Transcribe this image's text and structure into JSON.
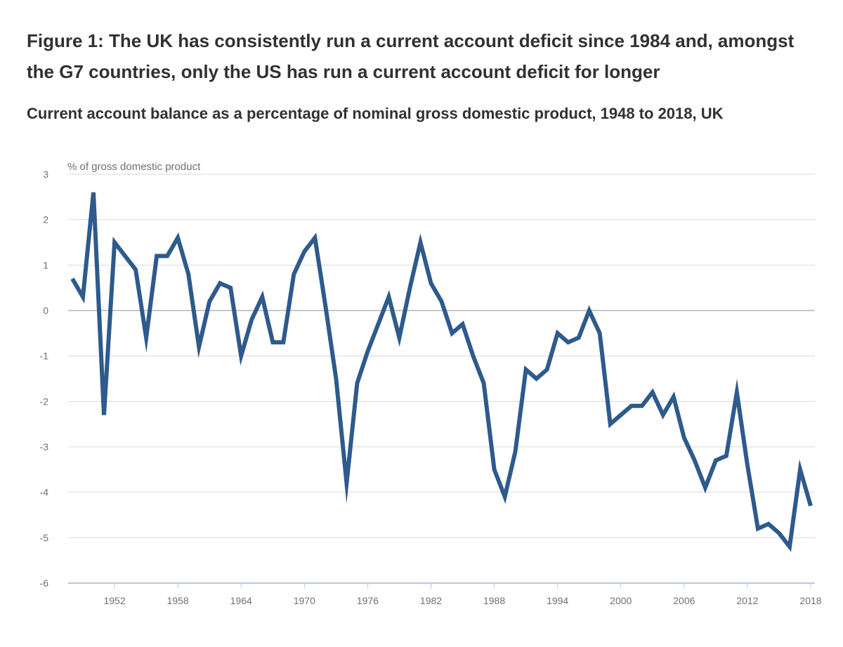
{
  "title": "Figure 1: The UK has consistently run a current account deficit since 1984 and, amongst the G7 countries, only the US has run a current account deficit for longer",
  "subtitle": "Current account balance as a percentage of nominal gross domestic product, 1948 to 2018, UK",
  "colors": {
    "line": "#2e5a8c",
    "grid": "#d9d9d9",
    "zero": "#c8c8c8",
    "axis": "#b9c9e0",
    "text": "#323132",
    "tick": "#707071"
  },
  "chart_data": {
    "type": "line",
    "ylabel": "% of gross domestic product",
    "xlabel": "",
    "ylim": [
      -6,
      3
    ],
    "xlim": [
      1948,
      2018
    ],
    "yticks": [
      3,
      2,
      1,
      0,
      -1,
      -2,
      -3,
      -4,
      -5,
      -6
    ],
    "xticks": [
      1952,
      1958,
      1964,
      1970,
      1976,
      1982,
      1988,
      1994,
      2000,
      2006,
      2012,
      2018
    ],
    "grid": true,
    "series": [
      {
        "name": "Current account balance (% of GDP)",
        "x": [
          1948,
          1949,
          1950,
          1951,
          1952,
          1953,
          1954,
          1955,
          1956,
          1957,
          1958,
          1959,
          1960,
          1961,
          1962,
          1963,
          1964,
          1965,
          1966,
          1967,
          1968,
          1969,
          1970,
          1971,
          1972,
          1973,
          1974,
          1975,
          1976,
          1977,
          1978,
          1979,
          1980,
          1981,
          1982,
          1983,
          1984,
          1985,
          1986,
          1987,
          1988,
          1989,
          1990,
          1991,
          1992,
          1993,
          1994,
          1995,
          1996,
          1997,
          1998,
          1999,
          2000,
          2001,
          2002,
          2003,
          2004,
          2005,
          2006,
          2007,
          2008,
          2009,
          2010,
          2011,
          2012,
          2013,
          2014,
          2015,
          2016,
          2017,
          2018
        ],
        "values": [
          0.7,
          0.3,
          2.6,
          -2.3,
          1.5,
          1.2,
          0.9,
          -0.6,
          1.2,
          1.2,
          1.6,
          0.8,
          -0.8,
          0.2,
          0.6,
          0.5,
          -1.0,
          -0.2,
          0.3,
          -0.7,
          -0.7,
          0.8,
          1.3,
          1.6,
          0.1,
          -1.5,
          -3.8,
          -1.6,
          -0.9,
          -0.3,
          0.3,
          -0.6,
          0.5,
          1.5,
          0.6,
          0.2,
          -0.5,
          -0.3,
          -1.0,
          -1.6,
          -3.5,
          -4.1,
          -3.1,
          -1.3,
          -1.5,
          -1.3,
          -0.5,
          -0.7,
          -0.6,
          0.0,
          -0.5,
          -2.5,
          -2.3,
          -2.1,
          -2.1,
          -1.8,
          -2.3,
          -1.9,
          -2.8,
          -3.3,
          -3.9,
          -3.3,
          -3.2,
          -1.8,
          -3.4,
          -4.8,
          -4.7,
          -4.9,
          -5.2,
          -3.5,
          -4.3
        ]
      }
    ]
  }
}
